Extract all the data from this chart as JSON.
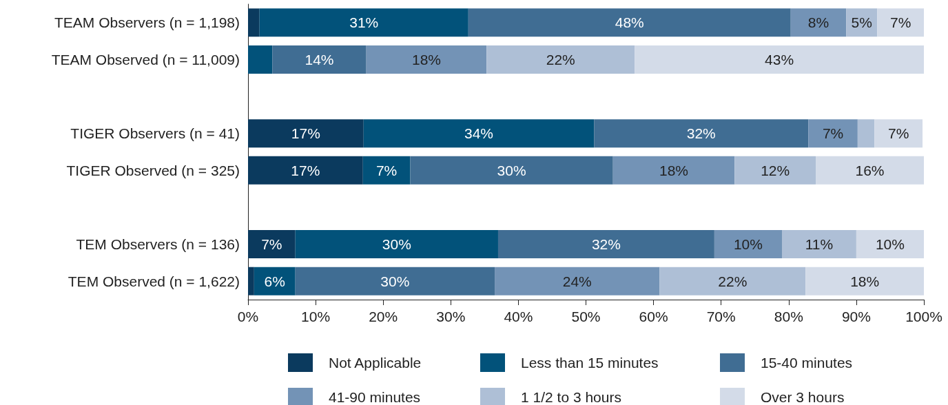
{
  "chart_data": {
    "type": "bar",
    "orientation": "horizontal",
    "stacked": true,
    "legend": "bottom",
    "grid": false,
    "categories": [
      "TEAM Observers (n = 1,198)",
      "TEAM Observed (n = 11,009)",
      null,
      "TIGER Observers (n = 41)",
      "TIGER Observed (n = 325)",
      null,
      "TEM Observers (n = 136)",
      "TEM Observed (n = 1,622)"
    ],
    "xlim": [
      0,
      100
    ],
    "xticks": [
      {
        "value": 0,
        "label": "0%"
      },
      {
        "value": 10,
        "label": "10%"
      },
      {
        "value": 20,
        "label": "20%"
      },
      {
        "value": 30,
        "label": "30%"
      },
      {
        "value": 40,
        "label": "40%"
      },
      {
        "value": 50,
        "label": "50%"
      },
      {
        "value": 60,
        "label": "60%"
      },
      {
        "value": 70,
        "label": "70%"
      },
      {
        "value": 80,
        "label": "80%"
      },
      {
        "value": 90,
        "label": "90%"
      },
      {
        "value": 100,
        "label": "100%"
      }
    ],
    "series": [
      {
        "name": "Not Applicable",
        "color": "#0b3a5e",
        "values": [
          1.7,
          0,
          null,
          17.1,
          17,
          null,
          7,
          0.9
        ],
        "value_labels": [
          null,
          null,
          null,
          "17%",
          "17%",
          null,
          "7%",
          null
        ]
      },
      {
        "name": "Less than 15 minutes",
        "color": "#02527a",
        "values": [
          30.9,
          3.6,
          null,
          34.1,
          7,
          null,
          30,
          6.1
        ],
        "value_labels": [
          "31%",
          null,
          null,
          "34%",
          "7%",
          null,
          "30%",
          "6%"
        ]
      },
      {
        "name": "15-40 minutes",
        "color": "#406d93",
        "values": [
          47.7,
          13.9,
          null,
          31.7,
          30,
          null,
          32,
          29.5
        ],
        "value_labels": [
          "48%",
          "14%",
          null,
          "32%",
          "30%",
          null,
          "32%",
          "30%"
        ]
      },
      {
        "name": "41-90 minutes",
        "color": "#7393b6",
        "values": [
          8.2,
          17.8,
          null,
          7.3,
          18,
          null,
          10,
          24.4
        ],
        "value_labels": [
          "8%",
          "18%",
          null,
          "7%",
          "18%",
          null,
          "10%",
          "24%"
        ]
      },
      {
        "name": "1 1/2 to 3 hours",
        "color": "#aebfd6",
        "values": [
          4.6,
          21.9,
          null,
          2.5,
          12,
          null,
          11,
          21.6
        ],
        "value_labels": [
          "5%",
          "22%",
          null,
          null,
          "12%",
          null,
          "11%",
          "22%"
        ]
      },
      {
        "name": "Over 3 hours",
        "color": "#d3dbe8",
        "values": [
          6.9,
          42.8,
          null,
          7.1,
          16,
          null,
          10,
          17.5
        ],
        "value_labels": [
          "7%",
          "43%",
          null,
          "7%",
          "16%",
          null,
          "10%",
          "18%"
        ]
      }
    ]
  }
}
